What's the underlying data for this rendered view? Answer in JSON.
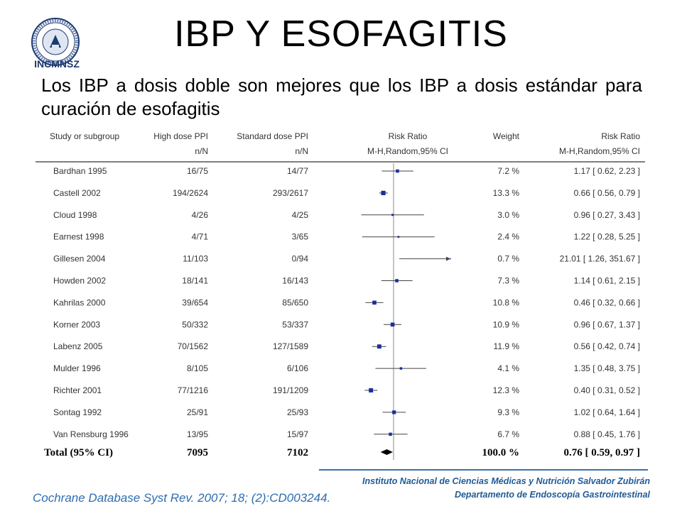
{
  "header": {
    "logo_text": "INCMNSZ",
    "title": "IBP Y ESOFAGITIS",
    "subtitle": "Los IBP a dosis doble son mejores que los IBP a dosis estándar para curación de esofagitis"
  },
  "chart_data": {
    "type": "forest",
    "columns": {
      "study": "Study or subgroup",
      "high": "High dose PPI",
      "std": "Standard dose PPI",
      "rr": "Risk Ratio",
      "weight": "Weight",
      "rr_text": "Risk Ratio",
      "high_sub": "n/N",
      "std_sub": "n/N",
      "rr_sub": "M-H,Random,95% CI",
      "rr_text_sub": "M-H,Random,95% CI"
    },
    "scale": "log",
    "xlim": [
      0.1,
      10
    ],
    "null_value": 1,
    "studies": [
      {
        "name": "Bardhan 1995",
        "high": "16/75",
        "std": "14/77",
        "weight": "7.2 %",
        "rr_text": "1.17 [ 0.62, 2.23 ]",
        "rr": 1.17,
        "lo": 0.62,
        "hi": 2.23,
        "w": 7.2
      },
      {
        "name": "Castell 2002",
        "high": "194/2624",
        "std": "293/2617",
        "weight": "13.3 %",
        "rr_text": "0.66 [ 0.56, 0.79 ]",
        "rr": 0.66,
        "lo": 0.56,
        "hi": 0.79,
        "w": 13.3
      },
      {
        "name": "Cloud 1998",
        "high": "4/26",
        "std": "4/25",
        "weight": "3.0 %",
        "rr_text": "0.96 [ 0.27, 3.43 ]",
        "rr": 0.96,
        "lo": 0.27,
        "hi": 3.43,
        "w": 3.0
      },
      {
        "name": "Earnest 1998",
        "high": "4/71",
        "std": "3/65",
        "weight": "2.4 %",
        "rr_text": "1.22 [ 0.28, 5.25 ]",
        "rr": 1.22,
        "lo": 0.28,
        "hi": 5.25,
        "w": 2.4
      },
      {
        "name": "Gillesen 2004",
        "high": "11/103",
        "std": "0/94",
        "weight": "0.7 %",
        "rr_text": "21.01 [ 1.26, 351.67 ]",
        "rr": 21.01,
        "lo": 1.26,
        "hi": 351.67,
        "w": 0.7
      },
      {
        "name": "Howden 2002",
        "high": "18/141",
        "std": "16/143",
        "weight": "7.3 %",
        "rr_text": "1.14 [ 0.61, 2.15 ]",
        "rr": 1.14,
        "lo": 0.61,
        "hi": 2.15,
        "w": 7.3
      },
      {
        "name": "Kahrilas 2000",
        "high": "39/654",
        "std": "85/650",
        "weight": "10.8 %",
        "rr_text": "0.46 [ 0.32, 0.66 ]",
        "rr": 0.46,
        "lo": 0.32,
        "hi": 0.66,
        "w": 10.8
      },
      {
        "name": "Korner 2003",
        "high": "50/332",
        "std": "53/337",
        "weight": "10.9 %",
        "rr_text": "0.96 [ 0.67, 1.37 ]",
        "rr": 0.96,
        "lo": 0.67,
        "hi": 1.37,
        "w": 10.9
      },
      {
        "name": "Labenz 2005",
        "high": "70/1562",
        "std": "127/1589",
        "weight": "11.9 %",
        "rr_text": "0.56 [ 0.42, 0.74 ]",
        "rr": 0.56,
        "lo": 0.42,
        "hi": 0.74,
        "w": 11.9
      },
      {
        "name": "Mulder 1996",
        "high": "8/105",
        "std": "6/106",
        "weight": "4.1 %",
        "rr_text": "1.35 [ 0.48, 3.75 ]",
        "rr": 1.35,
        "lo": 0.48,
        "hi": 3.75,
        "w": 4.1
      },
      {
        "name": "Richter 2001",
        "high": "77/1216",
        "std": "191/1209",
        "weight": "12.3 %",
        "rr_text": "0.40 [ 0.31, 0.52 ]",
        "rr": 0.4,
        "lo": 0.31,
        "hi": 0.52,
        "w": 12.3
      },
      {
        "name": "Sontag 1992",
        "high": "25/91",
        "std": "25/93",
        "weight": "9.3 %",
        "rr_text": "1.02 [ 0.64, 1.64 ]",
        "rr": 1.02,
        "lo": 0.64,
        "hi": 1.64,
        "w": 9.3
      },
      {
        "name": "Van Rensburg 1996",
        "high": "13/95",
        "std": "15/97",
        "weight": "6.7 %",
        "rr_text": "0.88 [ 0.45, 1.76 ]",
        "rr": 0.88,
        "lo": 0.45,
        "hi": 1.76,
        "w": 6.7
      }
    ],
    "total": {
      "name": "Total (95% CI)",
      "high": "7095",
      "std": "7102",
      "weight": "100.0 %",
      "rr_text": "0.76 [ 0.59, 0.97 ]",
      "rr": 0.76,
      "lo": 0.59,
      "hi": 0.97
    },
    "colors": {
      "marker": "#1a2fa0",
      "line": "#444444",
      "diamond": "#000000"
    }
  },
  "footer": {
    "institution_line1": "Instituto Nacional de Ciencias Médicas y Nutrición Salvador Zubirán",
    "institution_line2": "Departamento de Endoscopía Gastrointestinal",
    "citation": "Cochrane Database Syst Rev. 2007; 18; (2):CD003244."
  }
}
